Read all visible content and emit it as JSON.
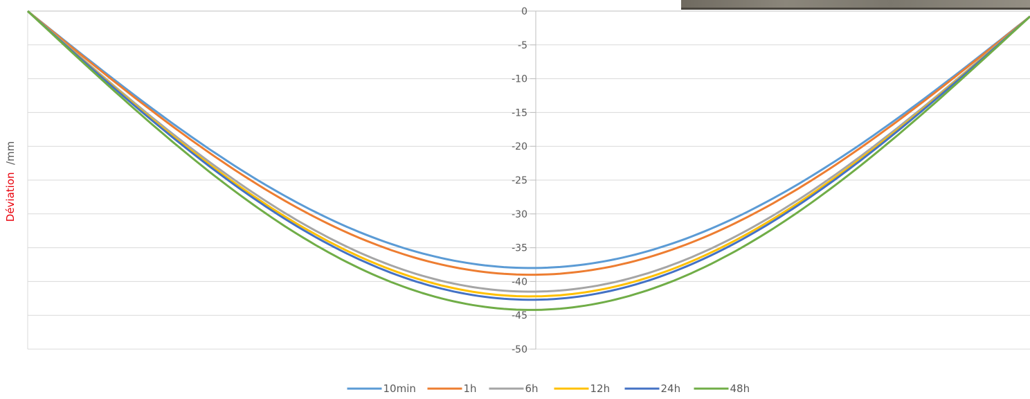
{
  "chart_data": {
    "type": "line",
    "ylabel": "Déviation",
    "ylabel_unit": "/mm",
    "ylim": [
      -50,
      0
    ],
    "yticks": [
      0,
      -5,
      -10,
      -15,
      -20,
      -25,
      -30,
      -35,
      -40,
      -45,
      -50
    ],
    "x_range": [
      0,
      1
    ],
    "grid": true,
    "legend_position": "bottom",
    "series": [
      {
        "name": "10min",
        "color": "#5B9BD5",
        "min": -38.0,
        "end": -0.8
      },
      {
        "name": "1h",
        "color": "#ED7D31",
        "min": -39.0,
        "end": -0.8
      },
      {
        "name": "6h",
        "color": "#A5A5A5",
        "min": -41.5,
        "end": -0.8
      },
      {
        "name": "12h",
        "color": "#FFC000",
        "min": -42.2,
        "end": -0.8
      },
      {
        "name": "24h",
        "color": "#4472C4",
        "min": -42.7,
        "end": -0.8
      },
      {
        "name": "48h",
        "color": "#70AD47",
        "min": -44.2,
        "end": -0.8
      }
    ]
  }
}
